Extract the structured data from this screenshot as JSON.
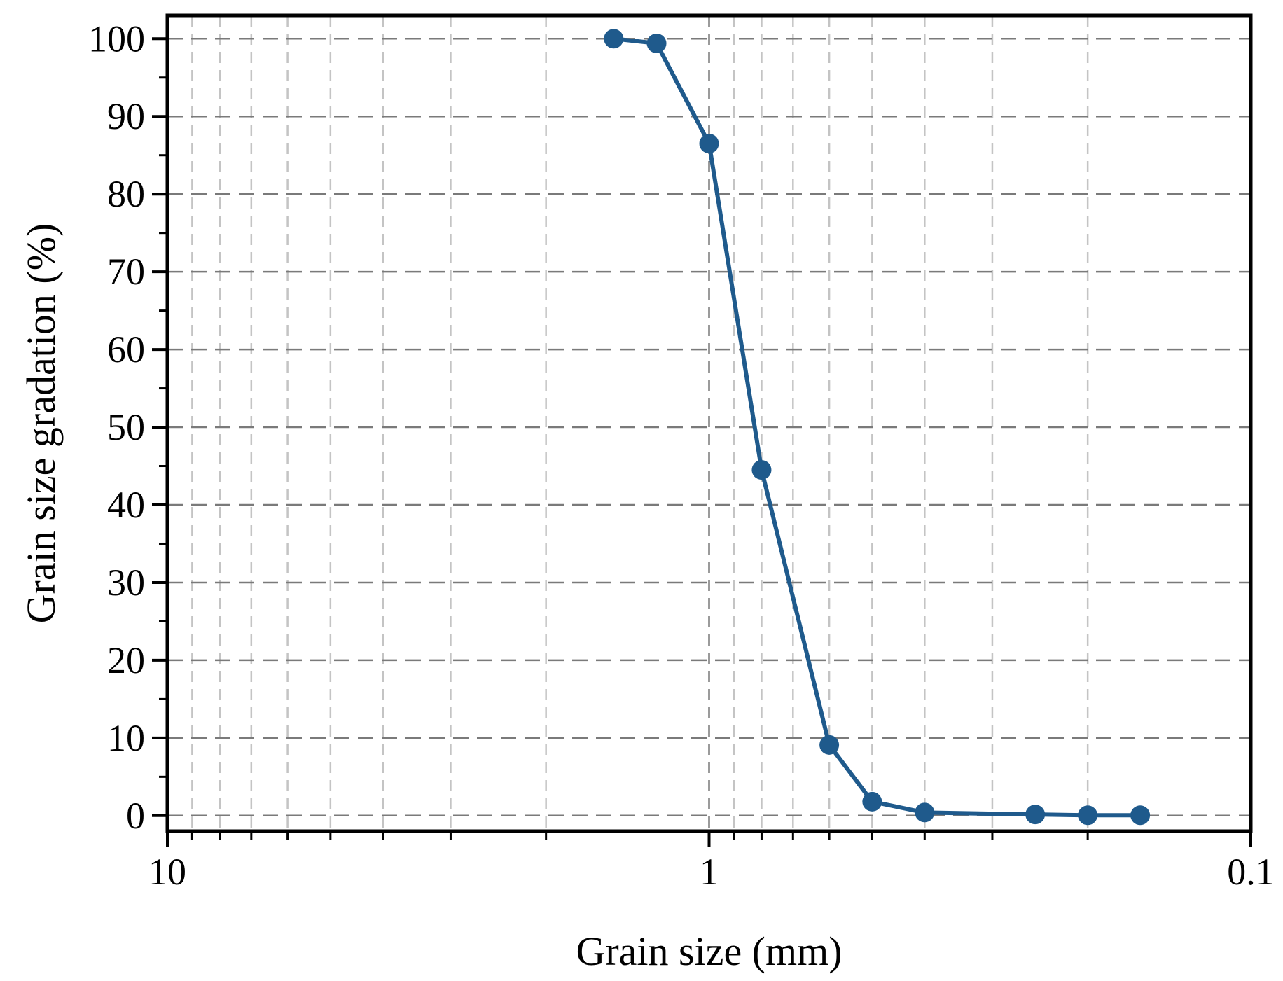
{
  "chart_data": {
    "type": "line",
    "xlabel": "Grain size (mm)",
    "ylabel": "Grain size gradation (%)",
    "x_scale": "log",
    "x_reversed": true,
    "xlim": [
      10,
      0.1
    ],
    "ylim": [
      -2,
      103
    ],
    "x_ticks": [
      {
        "value": 10,
        "label": "10"
      },
      {
        "value": 1,
        "label": "1"
      },
      {
        "value": 0.1,
        "label": "0.1"
      }
    ],
    "y_ticks": [
      {
        "value": 0,
        "label": "0"
      },
      {
        "value": 10,
        "label": "10"
      },
      {
        "value": 20,
        "label": "20"
      },
      {
        "value": 30,
        "label": "30"
      },
      {
        "value": 40,
        "label": "40"
      },
      {
        "value": 50,
        "label": "50"
      },
      {
        "value": 60,
        "label": "60"
      },
      {
        "value": 70,
        "label": "70"
      },
      {
        "value": 80,
        "label": "80"
      },
      {
        "value": 90,
        "label": "90"
      },
      {
        "value": 100,
        "label": "100"
      }
    ],
    "grid": true,
    "legend": "none",
    "series": [
      {
        "color": "#1f5a8c",
        "x": [
          1.5,
          1.25,
          1.0,
          0.8,
          0.6,
          0.5,
          0.4,
          0.25,
          0.2,
          0.16
        ],
        "y": [
          100,
          99.4,
          86.5,
          44.5,
          9.1,
          1.8,
          0.4,
          0.15,
          0.05,
          0.05
        ]
      }
    ]
  }
}
